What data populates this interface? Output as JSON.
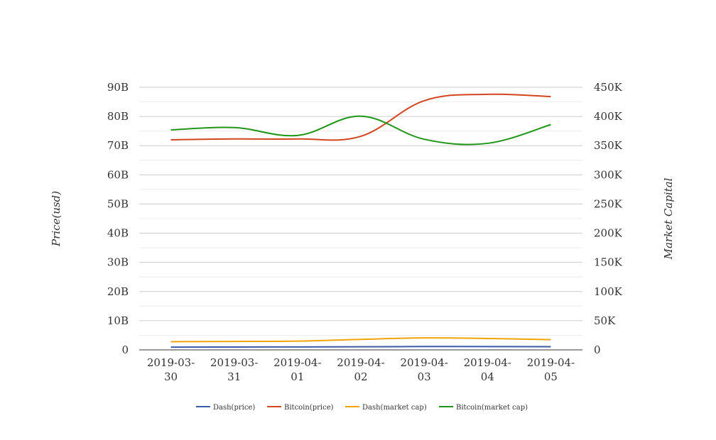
{
  "chart_data": {
    "type": "line",
    "x": [
      "2019-03-30",
      "2019-03-31",
      "2019-04-01",
      "2019-04-02",
      "2019-04-03",
      "2019-04-04",
      "2019-04-05"
    ],
    "x_tick_lines": [
      [
        "2019-03-",
        "30"
      ],
      [
        "2019-03-",
        "31"
      ],
      [
        "2019-04-",
        "01"
      ],
      [
        "2019-04-",
        "02"
      ],
      [
        "2019-04-",
        "03"
      ],
      [
        "2019-04-",
        "04"
      ],
      [
        "2019-04-",
        "05"
      ]
    ],
    "y_left": {
      "label": "Price(usd)",
      "lim": [
        0,
        90000000000
      ],
      "ticks": [
        0,
        10000000000,
        20000000000,
        30000000000,
        40000000000,
        50000000000,
        60000000000,
        70000000000,
        80000000000,
        90000000000
      ],
      "tick_labels": [
        "0",
        "10B",
        "20B",
        "30B",
        "40B",
        "50B",
        "60B",
        "70B",
        "80B",
        "90B"
      ]
    },
    "y_right": {
      "label": "Market Capital",
      "lim": [
        0,
        450000
      ],
      "ticks": [
        0,
        50000,
        100000,
        150000,
        200000,
        250000,
        300000,
        350000,
        400000,
        450000
      ],
      "tick_labels": [
        "0",
        "50K",
        "100K",
        "150K",
        "200K",
        "250K",
        "300K",
        "350K",
        "400K",
        "450K"
      ]
    },
    "grid": true,
    "legend_position": "bottom",
    "series": [
      {
        "name": "Dash(price)",
        "axis": "left",
        "color": "#3a5ba9",
        "values": [
          950000000,
          980000000,
          1000000000,
          1050000000,
          1150000000,
          1120000000,
          1100000000
        ]
      },
      {
        "name": "Bitcoin(price)",
        "axis": "left",
        "color": "#d2451e",
        "values": [
          72000000000,
          72300000000,
          72300000000,
          73200000000,
          85400000000,
          87600000000,
          86800000000
        ]
      },
      {
        "name": "Dash(market cap)",
        "axis": "left",
        "color": "#f0a30a",
        "values": [
          2800000000,
          2900000000,
          3000000000,
          3600000000,
          4100000000,
          3900000000,
          3500000000
        ]
      },
      {
        "name": "Bitcoin(market cap)",
        "axis": "left",
        "color": "#1f9618",
        "values": [
          75400000000,
          76200000000,
          73500000000,
          80100000000,
          72200000000,
          70800000000,
          77200000000
        ]
      }
    ]
  }
}
